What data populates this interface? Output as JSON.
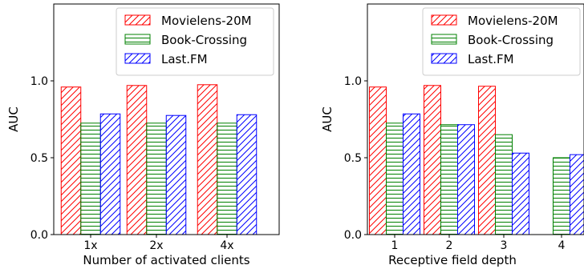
{
  "chart_data": [
    {
      "type": "bar",
      "xlabel": "Number of activated clients",
      "ylabel": "AUC",
      "categories": [
        "1x",
        "2x",
        "4x"
      ],
      "ylim": [
        0,
        1.5
      ],
      "yticks": [
        "0.0",
        "0.5",
        "1.0"
      ],
      "legend_position": "top-right",
      "grid": false,
      "series": [
        {
          "name": "Movielens-20M",
          "color": "#ff0000",
          "hatch": "diagonal",
          "values": [
            0.96,
            0.97,
            0.975
          ]
        },
        {
          "name": "Book-Crossing",
          "color": "#008000",
          "hatch": "horizontal",
          "values": [
            0.725,
            0.725,
            0.725
          ]
        },
        {
          "name": "Last.FM",
          "color": "#0000ff",
          "hatch": "diagonal",
          "values": [
            0.785,
            0.775,
            0.78
          ]
        }
      ]
    },
    {
      "type": "bar",
      "xlabel": "Receptive field depth",
      "ylabel": "AUC",
      "categories": [
        "1",
        "2",
        "3",
        "4"
      ],
      "ylim": [
        0,
        1.5
      ],
      "yticks": [
        "0.0",
        "0.5",
        "1.0"
      ],
      "legend_position": "top-right",
      "grid": false,
      "series": [
        {
          "name": "Movielens-20M",
          "color": "#ff0000",
          "hatch": "diagonal",
          "values": [
            0.96,
            0.97,
            0.965,
            null
          ]
        },
        {
          "name": "Book-Crossing",
          "color": "#008000",
          "hatch": "horizontal",
          "values": [
            0.725,
            0.715,
            0.65,
            0.5
          ]
        },
        {
          "name": "Last.FM",
          "color": "#0000ff",
          "hatch": "diagonal",
          "values": [
            0.785,
            0.715,
            0.53,
            0.52
          ]
        }
      ]
    }
  ]
}
